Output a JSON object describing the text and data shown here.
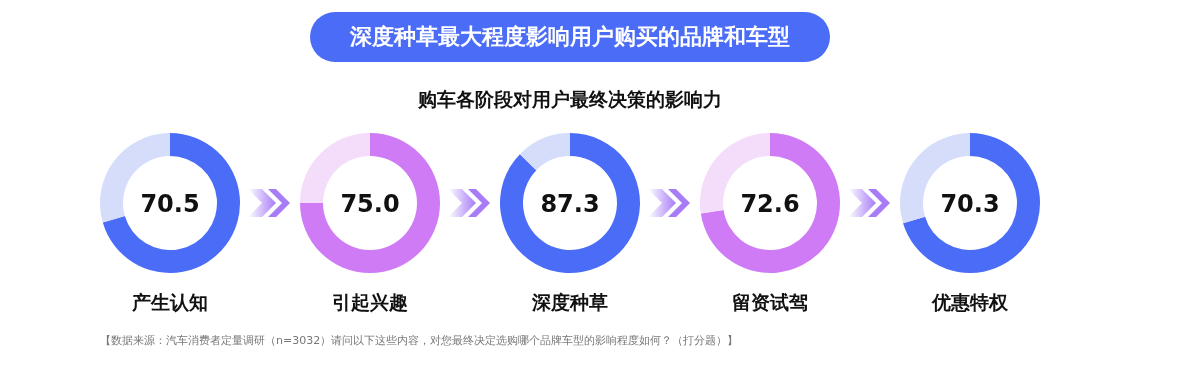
{
  "chart_data": [
    {
      "type": "other",
      "title": "深度种草最大程度影响用户购买的品牌和车型",
      "subtitle": "购车各阶段对用户最终决策的影响力",
      "annotations": [
        "【数据来源：汽车消费者定量调研（n=3032）请问以下这些内容，对您最终决定选购哪个品牌车型的影响程度如何？（打分题）】"
      ]
    },
    {
      "type": "donut",
      "xlabel": "产生认知",
      "categories": [
        null,
        null
      ],
      "values": [
        70.5,
        29.5
      ],
      "colors": [
        "#4a6cf7",
        "#d6ddfb"
      ],
      "value_labels": [
        "70.5",
        null
      ]
    },
    {
      "type": "donut",
      "xlabel": "引起兴趣",
      "categories": [
        null,
        null
      ],
      "values": [
        75.0,
        25.0
      ],
      "colors": [
        "#cf7bf5",
        "#f4dcfb"
      ],
      "value_labels": [
        "75.0",
        null
      ]
    },
    {
      "type": "donut",
      "xlabel": "深度种草",
      "categories": [
        null,
        null
      ],
      "values": [
        87.3,
        12.7
      ],
      "colors": [
        "#4a6cf7",
        "#d6ddfb"
      ],
      "value_labels": [
        "87.3",
        null
      ]
    },
    {
      "type": "donut",
      "xlabel": "留资试驾",
      "categories": [
        null,
        null
      ],
      "values": [
        72.6,
        27.4
      ],
      "colors": [
        "#cf7bf5",
        "#f4dcfb"
      ],
      "value_labels": [
        "72.6",
        null
      ]
    },
    {
      "type": "donut",
      "xlabel": "优惠特权",
      "categories": [
        null,
        null
      ],
      "values": [
        70.3,
        29.7
      ],
      "colors": [
        "#4a6cf7",
        "#d6ddfb"
      ],
      "value_labels": [
        "70.3",
        null
      ]
    }
  ]
}
